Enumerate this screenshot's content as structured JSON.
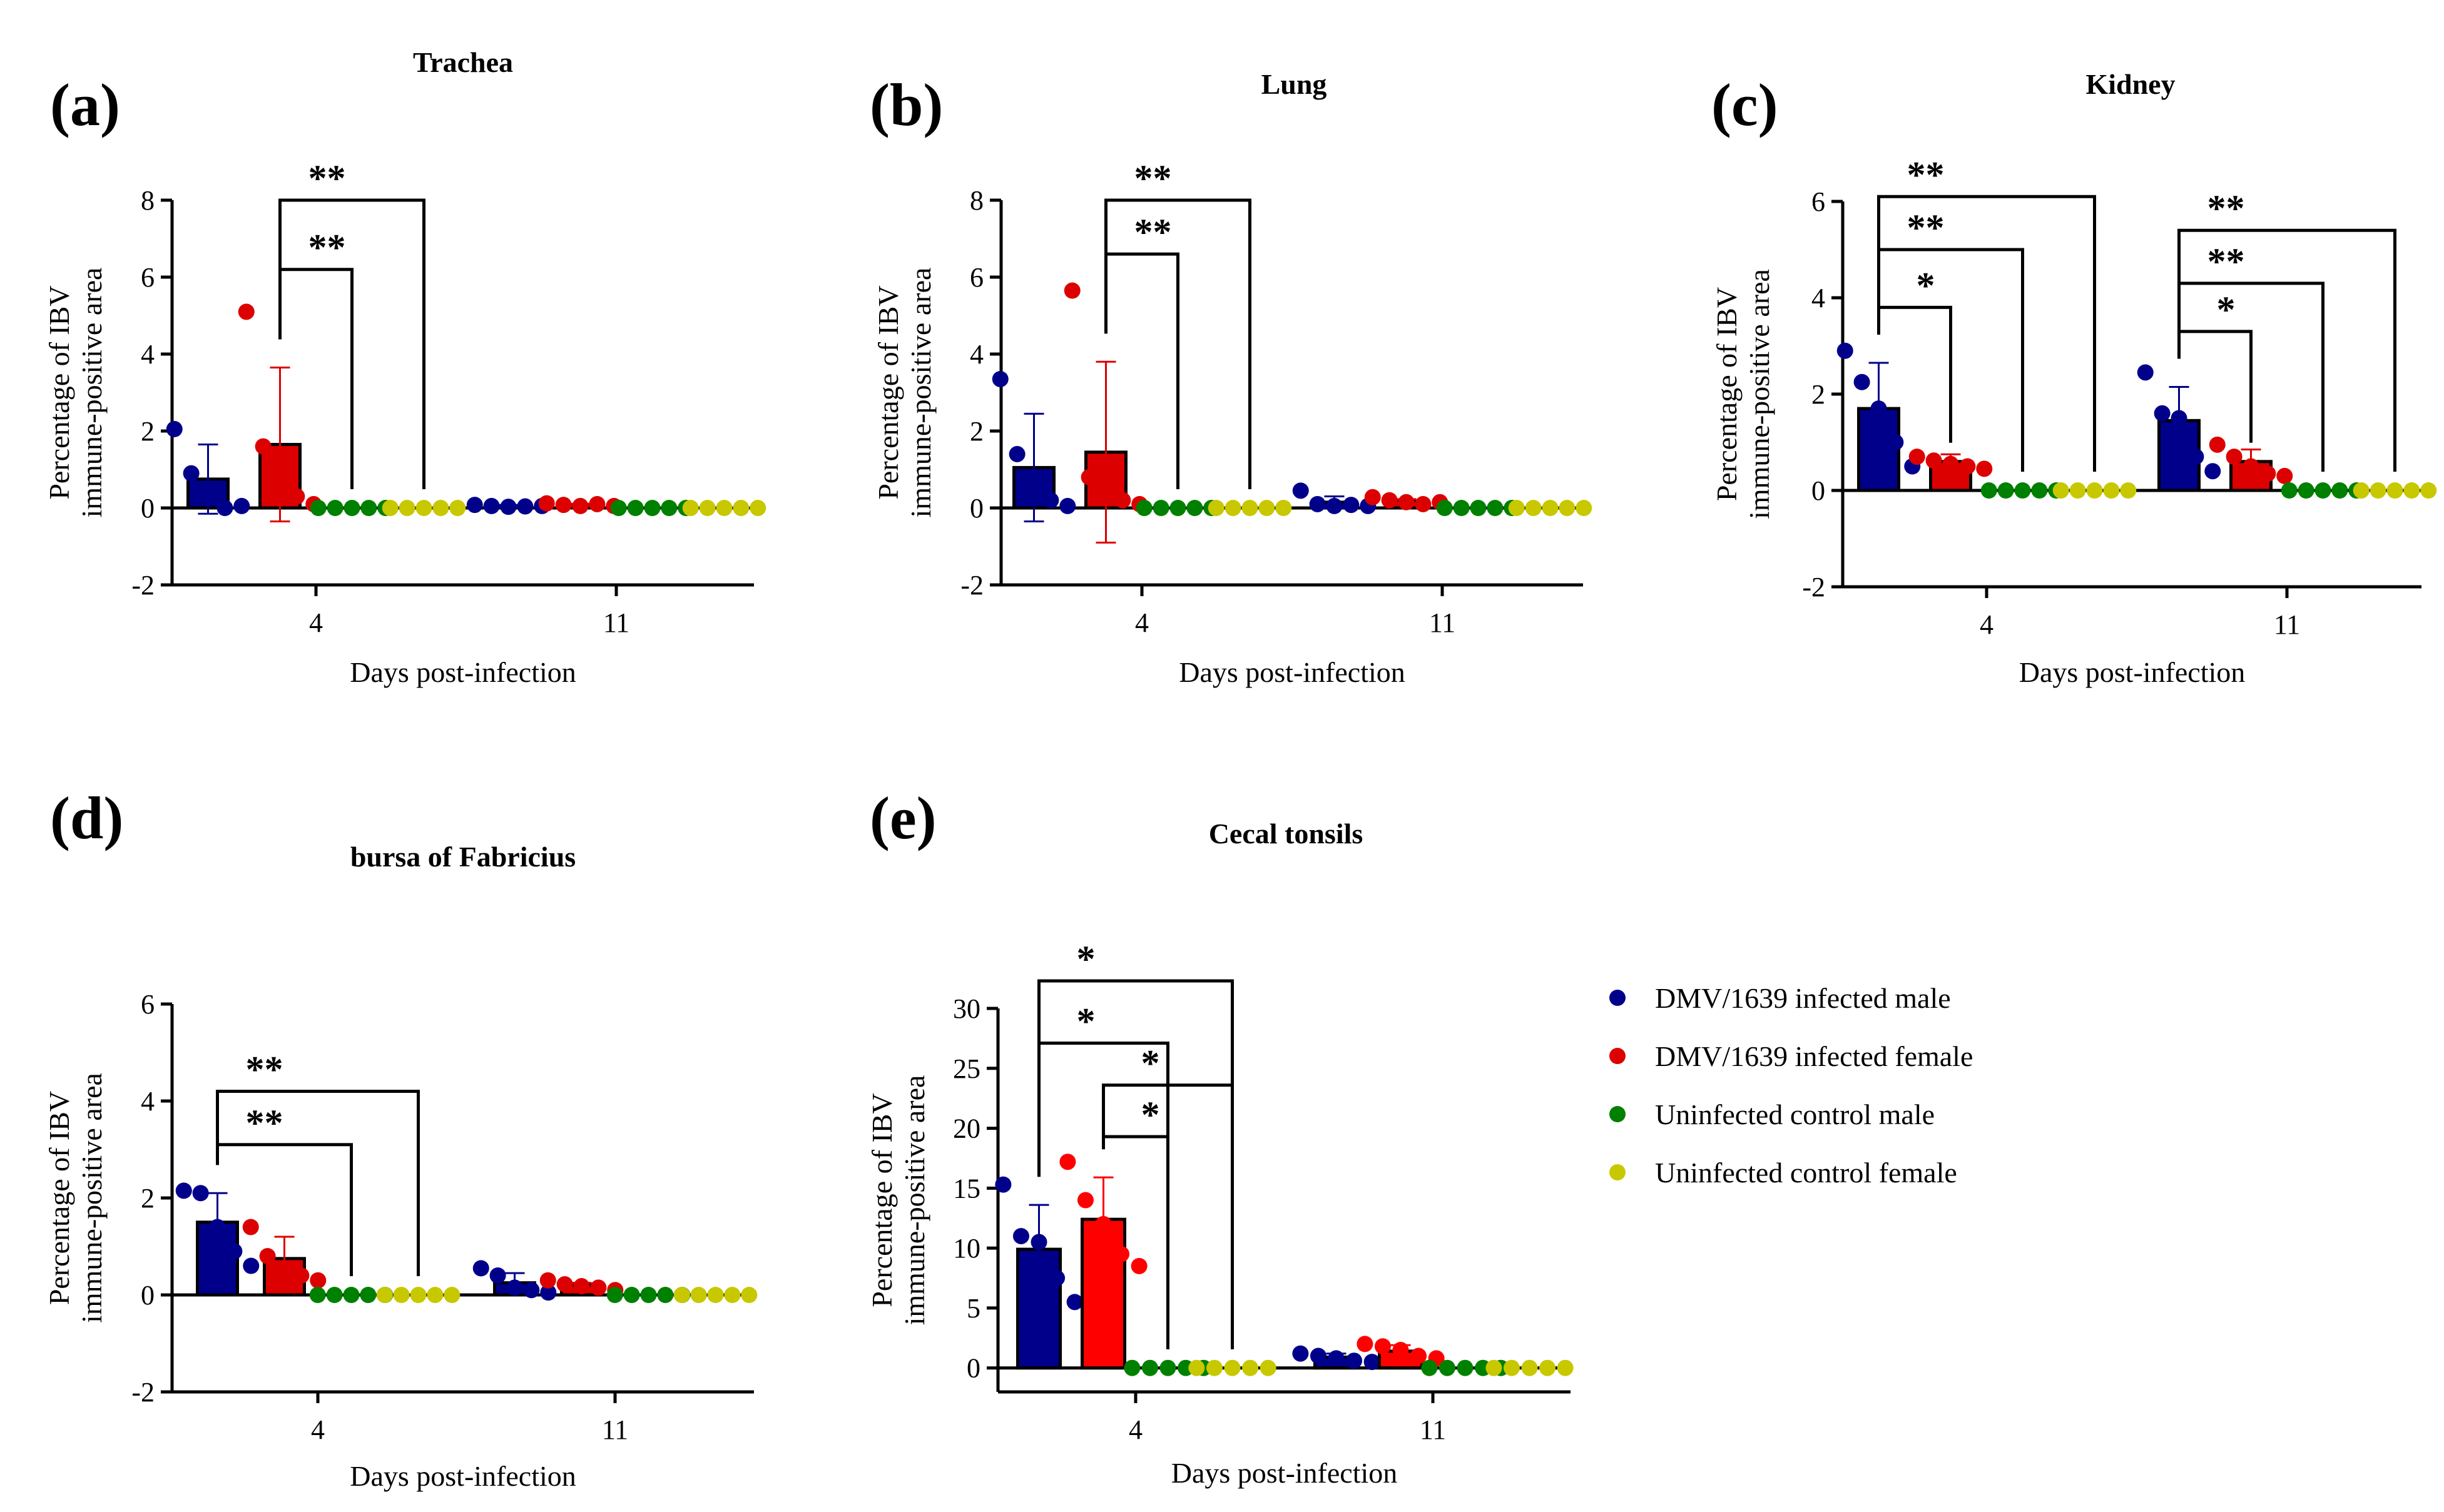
{
  "figure": {
    "legend": [
      {
        "label": "DMV/1639 infected male",
        "color": "#00008b"
      },
      {
        "label": "DMV/1639 infected female",
        "color": "#dd0000"
      },
      {
        "label": "Uninfected control male",
        "color": "#008000"
      },
      {
        "label": "Uninfected control female",
        "color": "#c8c800"
      }
    ]
  },
  "chart_data": [
    {
      "panel": "(a)",
      "title": "Trachea",
      "type": "bar",
      "xlabel": "Days post-infection",
      "ylabel": [
        "Percentage of IBV",
        "immune-positive area"
      ],
      "ylim": [
        -2,
        8
      ],
      "yticks": [
        -2,
        0,
        2,
        4,
        6,
        8
      ],
      "ytick_labels": [
        "-2",
        "0",
        "2",
        "4",
        "6",
        "8"
      ],
      "categories": [
        "4",
        "11"
      ],
      "series": [
        {
          "name": "DMV/1639 infected male",
          "color": "#00008b",
          "values": [
            0.75,
            0.05
          ],
          "errors": [
            0.9,
            0.03
          ],
          "points": [
            [
              2.05,
              0.9,
              0.3,
              0.0,
              0.05
            ],
            [
              0.08,
              0.05,
              0.03,
              0.04,
              0.05
            ]
          ]
        },
        {
          "name": "DMV/1639 infected female",
          "color": "#dd0000",
          "values": [
            1.65,
            0.08
          ],
          "errors": [
            2.0,
            0.03
          ],
          "points": [
            [
              5.1,
              1.6,
              1.1,
              0.3,
              0.1
            ],
            [
              0.12,
              0.08,
              0.05,
              0.1,
              0.05
            ]
          ]
        },
        {
          "name": "Uninfected control male",
          "color": "#008000",
          "values": [
            0.0,
            0.0
          ],
          "errors": [
            0,
            0
          ],
          "points": [
            [
              0,
              0,
              0,
              0,
              0
            ],
            [
              0,
              0,
              0,
              0,
              0
            ]
          ]
        },
        {
          "name": "Uninfected control female",
          "color": "#c8c800",
          "values": [
            0.0,
            0.0
          ],
          "errors": [
            0,
            0
          ],
          "points": [
            [
              0,
              0,
              0,
              0,
              0
            ],
            [
              0,
              0,
              0,
              0,
              0
            ]
          ]
        }
      ],
      "significance": [
        {
          "group": 0,
          "from": 1,
          "to": 2,
          "y": 6.2,
          "label": "**"
        },
        {
          "group": 0,
          "from": 1,
          "to": 3,
          "y": 8.0,
          "label": "**"
        }
      ]
    },
    {
      "panel": "(b)",
      "title": "Lung",
      "type": "bar",
      "xlabel": "Days post-infection",
      "ylabel": [
        "Percentage of IBV",
        "immune-positive area"
      ],
      "ylim": [
        -2,
        8
      ],
      "yticks": [
        -2,
        0,
        2,
        4,
        6,
        8
      ],
      "ytick_labels": [
        "-2",
        "0",
        "2",
        "4",
        "6",
        "8"
      ],
      "categories": [
        "4",
        "11"
      ],
      "series": [
        {
          "name": "DMV/1639 infected male",
          "color": "#00008b",
          "values": [
            1.05,
            0.15
          ],
          "errors": [
            1.4,
            0.15
          ],
          "points": [
            [
              3.35,
              1.4,
              0.7,
              0.2,
              0.05
            ],
            [
              0.45,
              0.1,
              0.05,
              0.08,
              0.05
            ]
          ]
        },
        {
          "name": "DMV/1639 infected female",
          "color": "#dd0000",
          "values": [
            1.45,
            0.18
          ],
          "errors": [
            2.35,
            0.05
          ],
          "points": [
            [
              5.65,
              0.8,
              0.3,
              0.2,
              0.1
            ],
            [
              0.28,
              0.2,
              0.15,
              0.1,
              0.15
            ]
          ]
        },
        {
          "name": "Uninfected control male",
          "color": "#008000",
          "values": [
            0.0,
            0.0
          ],
          "errors": [
            0,
            0
          ],
          "points": [
            [
              0,
              0,
              0,
              0,
              0
            ],
            [
              0,
              0,
              0,
              0,
              0
            ]
          ]
        },
        {
          "name": "Uninfected control female",
          "color": "#c8c800",
          "values": [
            0.0,
            0.0
          ],
          "errors": [
            0,
            0
          ],
          "points": [
            [
              0,
              0,
              0,
              0,
              0
            ],
            [
              0,
              0,
              0,
              0,
              0
            ]
          ]
        }
      ],
      "significance": [
        {
          "group": 0,
          "from": 1,
          "to": 2,
          "y": 6.6,
          "label": "**"
        },
        {
          "group": 0,
          "from": 1,
          "to": 3,
          "y": 8.0,
          "label": "**"
        }
      ]
    },
    {
      "panel": "(c)",
      "title": "Kidney",
      "type": "bar",
      "xlabel": "Days post-infection",
      "ylabel": [
        "Percentage of IBV",
        "immune-positive area"
      ],
      "ylim": [
        -2,
        6
      ],
      "yticks": [
        -2,
        0,
        2,
        4,
        6
      ],
      "ytick_labels": [
        "-2",
        "0",
        "2",
        "4",
        "6"
      ],
      "categories": [
        "4",
        "11"
      ],
      "series": [
        {
          "name": "DMV/1639 infected male",
          "color": "#00008b",
          "values": [
            1.7,
            1.45
          ],
          "errors": [
            0.95,
            0.7
          ],
          "points": [
            [
              2.9,
              2.25,
              1.7,
              1.0,
              0.5
            ],
            [
              2.45,
              1.6,
              1.5,
              0.7,
              0.4
            ]
          ]
        },
        {
          "name": "DMV/1639 infected female",
          "color": "#dd0000",
          "values": [
            0.6,
            0.6
          ],
          "errors": [
            0.15,
            0.25
          ],
          "points": [
            [
              0.7,
              0.62,
              0.55,
              0.5,
              0.45
            ],
            [
              0.95,
              0.7,
              0.5,
              0.35,
              0.3
            ]
          ]
        },
        {
          "name": "Uninfected control male",
          "color": "#008000",
          "values": [
            0.0,
            0.0
          ],
          "errors": [
            0,
            0
          ],
          "points": [
            [
              0,
              0,
              0,
              0,
              0
            ],
            [
              0,
              0,
              0,
              0,
              0
            ]
          ]
        },
        {
          "name": "Uninfected control female",
          "color": "#c8c800",
          "values": [
            0.0,
            0.0
          ],
          "errors": [
            0,
            0
          ],
          "points": [
            [
              0,
              0,
              0,
              0,
              0
            ],
            [
              0,
              0,
              0,
              0,
              0
            ]
          ]
        }
      ],
      "significance": [
        {
          "group": 0,
          "from": 0,
          "to": 1,
          "y": 3.8,
          "label": "*"
        },
        {
          "group": 0,
          "from": 0,
          "to": 2,
          "y": 5.0,
          "label": "**"
        },
        {
          "group": 0,
          "from": 0,
          "to": 3,
          "y": 6.1,
          "label": "**"
        },
        {
          "group": 1,
          "from": 0,
          "to": 1,
          "y": 3.3,
          "label": "*"
        },
        {
          "group": 1,
          "from": 0,
          "to": 2,
          "y": 4.3,
          "label": "**"
        },
        {
          "group": 1,
          "from": 0,
          "to": 3,
          "y": 5.4,
          "label": "**"
        }
      ]
    },
    {
      "panel": "(d)",
      "title": "bursa of Fabricius",
      "type": "bar",
      "xlabel": "Days post-infection",
      "ylabel": [
        "Percentage of IBV",
        "immune-positive area"
      ],
      "ylim": [
        -2,
        6
      ],
      "yticks": [
        -2,
        0,
        2,
        4,
        6
      ],
      "ytick_labels": [
        "-2",
        "0",
        "2",
        "4",
        "6"
      ],
      "categories": [
        "4",
        "11"
      ],
      "series": [
        {
          "name": "DMV/1639 infected male",
          "color": "#00008b",
          "values": [
            1.5,
            0.25
          ],
          "errors": [
            0.6,
            0.2
          ],
          "points": [
            [
              2.15,
              2.1,
              1.4,
              0.9,
              0.6
            ],
            [
              0.55,
              0.4,
              0.15,
              0.1,
              0.05
            ]
          ]
        },
        {
          "name": "DMV/1639 infected female",
          "color": "#dd0000",
          "values": [
            0.75,
            0.2
          ],
          "errors": [
            0.45,
            0.05
          ],
          "points": [
            [
              1.4,
              0.8,
              0.5,
              0.4,
              0.3
            ],
            [
              0.3,
              0.22,
              0.18,
              0.15,
              0.1
            ]
          ]
        },
        {
          "name": "Uninfected control male",
          "color": "#008000",
          "values": [
            0.0,
            0.0
          ],
          "errors": [
            0,
            0
          ],
          "points": [
            [
              0,
              0,
              0,
              0,
              0
            ],
            [
              0,
              0,
              0,
              0,
              0
            ]
          ]
        },
        {
          "name": "Uninfected control female",
          "color": "#c8c800",
          "values": [
            0.0,
            0.0
          ],
          "errors": [
            0,
            0
          ],
          "points": [
            [
              0,
              0,
              0,
              0,
              0
            ],
            [
              0,
              0,
              0,
              0,
              0
            ]
          ]
        }
      ],
      "significance": [
        {
          "group": 0,
          "from": 0,
          "to": 2,
          "y": 3.1,
          "label": "**"
        },
        {
          "group": 0,
          "from": 0,
          "to": 3,
          "y": 4.2,
          "label": "**"
        }
      ]
    },
    {
      "panel": "(e)",
      "title": "Cecal tonsils",
      "type": "bar",
      "xlabel": "Days post-infection",
      "ylabel": [
        "Percentage of IBV",
        "immune-positive area"
      ],
      "ylim": [
        -2,
        30
      ],
      "yticks": [
        0,
        5,
        10,
        15,
        20,
        25,
        30
      ],
      "ytick_labels": [
        "0",
        "5",
        "10",
        "15",
        "20",
        "25",
        "30"
      ],
      "categories": [
        "4",
        "11"
      ],
      "series": [
        {
          "name": "DMV/1639 infected male",
          "color": "#00008b",
          "values": [
            9.9,
            0.9
          ],
          "errors": [
            3.7,
            0.3
          ],
          "points": [
            [
              15.3,
              11.0,
              10.5,
              7.5,
              5.5
            ],
            [
              1.2,
              1.0,
              0.8,
              0.6,
              0.5
            ]
          ]
        },
        {
          "name": "DMV/1639 infected female",
          "color": "#ff0000",
          "values": [
            12.4,
            1.4
          ],
          "errors": [
            3.5,
            0.5
          ],
          "points": [
            [
              17.2,
              14.0,
              12.0,
              9.5,
              8.5
            ],
            [
              2.0,
              1.8,
              1.5,
              1.0,
              0.8
            ]
          ]
        },
        {
          "name": "Uninfected control male",
          "color": "#008000",
          "values": [
            0.0,
            0.0
          ],
          "errors": [
            0,
            0
          ],
          "points": [
            [
              0,
              0,
              0,
              0,
              0
            ],
            [
              0,
              0,
              0,
              0,
              0
            ]
          ]
        },
        {
          "name": "Uninfected control female",
          "color": "#c8c800",
          "values": [
            0.0,
            0.0
          ],
          "errors": [
            0,
            0
          ],
          "points": [
            [
              0,
              0,
              0,
              0,
              0
            ],
            [
              0,
              0,
              0,
              0,
              0
            ]
          ]
        }
      ],
      "significance": [
        {
          "group": 0,
          "from": 1,
          "to": 2,
          "y": 19.3,
          "label": "*"
        },
        {
          "group": 0,
          "from": 1,
          "to": 3,
          "y": 23.6,
          "label": "*"
        },
        {
          "group": 0,
          "from": 0,
          "to": 2,
          "y": 27.1,
          "label": "*"
        },
        {
          "group": 0,
          "from": 0,
          "to": 3,
          "y": 32.3,
          "label": "*"
        }
      ]
    }
  ]
}
